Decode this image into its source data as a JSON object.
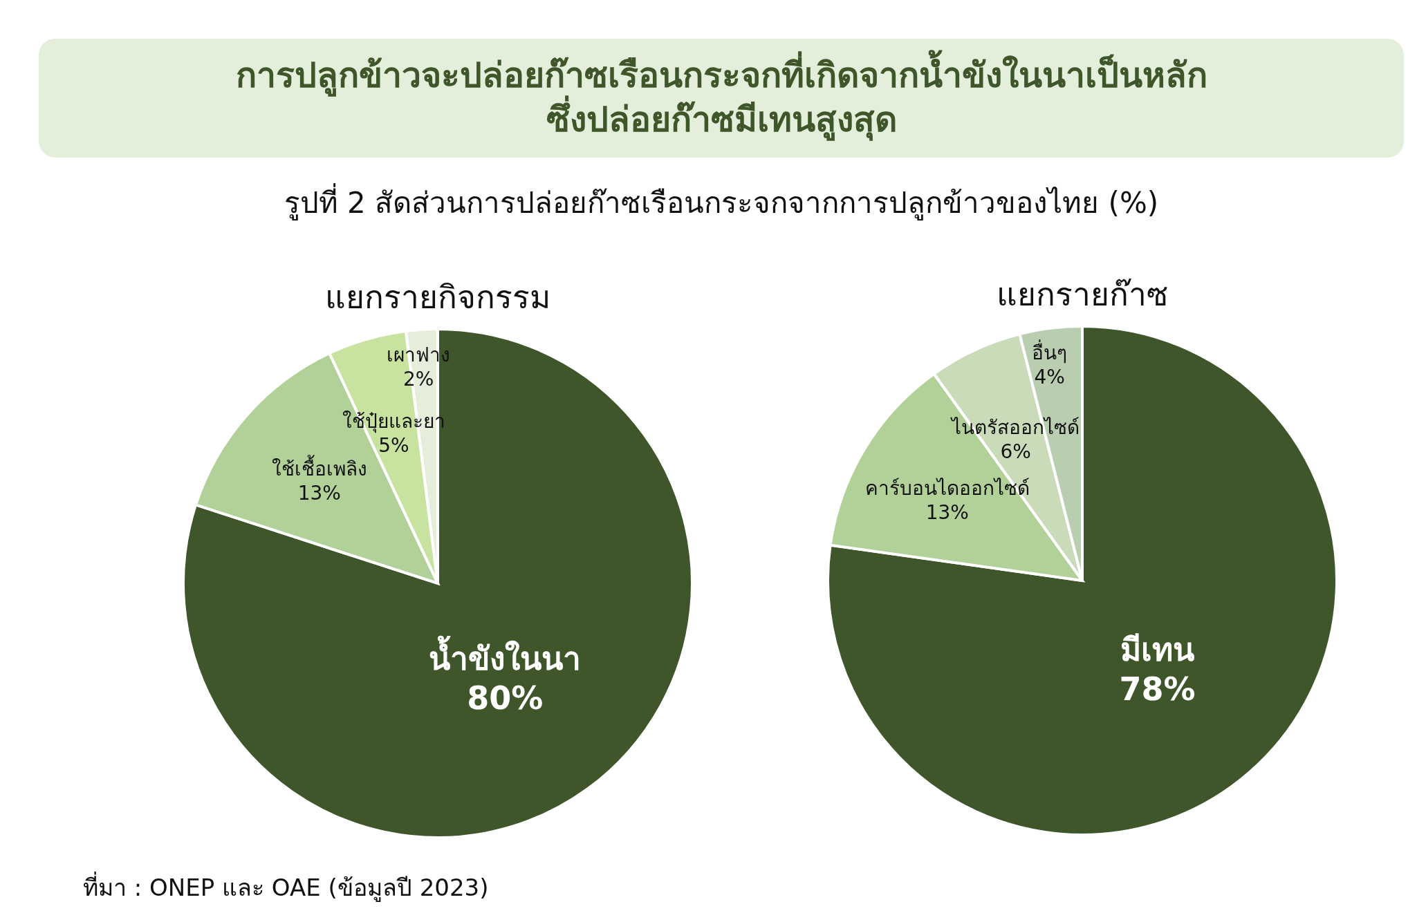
{
  "chart_data": [
    {
      "type": "other",
      "title": "การปลูกข้าวจะปล่อยก๊าซเรือนกระจกที่เกิดจากน้ำขังในนาเป็นหลัก\nซึ่งปล่อยก๊าซมีเทนสูงสุด",
      "subtitle": "รูปที่ 2 สัดส่วนการปล่อยก๊าซเรือนกระจกจากการปลูกข้าวของไทย (%)",
      "annotations": [
        "ที่มา : ONEP และ OAE (ข้อมูลปี 2023)"
      ]
    },
    {
      "type": "pie",
      "title": "แยกรายกิจกรรม",
      "categories": [
        "น้ำขังในนา",
        "ใช้เชื้อเพลิง",
        "ใช้ปุ๋ยและยา",
        "เผาฟาง"
      ],
      "values": [
        80,
        13,
        5,
        2
      ],
      "value_labels": [
        "80%",
        "13%",
        "5%",
        "2%"
      ],
      "colors": [
        "#3f562a",
        "#b2d198",
        "#c8e29f",
        "#e4eedb"
      ]
    },
    {
      "type": "pie",
      "title": "แยกรายก๊าซ",
      "categories": [
        "มีเทน",
        "คาร์บอนไดออกไซด์",
        "ไนตรัสออกไซด์",
        "อื่นๆ"
      ],
      "values": [
        78,
        13,
        6,
        4
      ],
      "value_labels": [
        "78%",
        "13%",
        "6%",
        "4%"
      ],
      "colors": [
        "#3f562a",
        "#b2d198",
        "#c9dbb8",
        "#b9cdb1"
      ]
    }
  ]
}
